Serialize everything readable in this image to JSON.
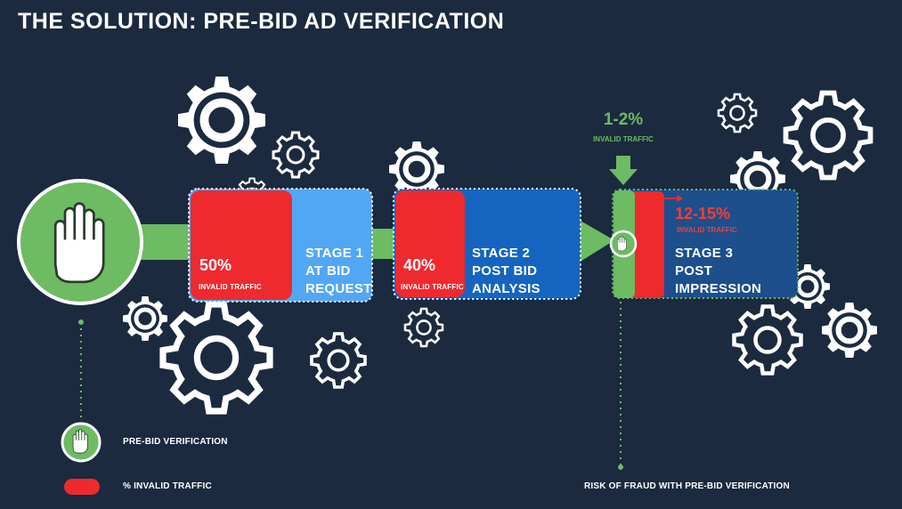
{
  "title": "THE SOLUTION: PRE-BID AD VERIFICATION",
  "stages": [
    {
      "pct": "50%",
      "pct_label": "INVALID TRAFFIC",
      "label_lines": [
        "STAGE 1",
        "AT BID",
        "REQUEST"
      ]
    },
    {
      "pct": "40%",
      "pct_label": "INVALID TRAFFIC",
      "label_lines": [
        "STAGE 2",
        "POST BID",
        "ANALYSIS"
      ]
    },
    {
      "pct": "12-15%",
      "pct_label": "INVALID TRAFFIC",
      "label_lines": [
        "STAGE 3",
        "POST",
        "IMPRESSION"
      ]
    }
  ],
  "prebid": {
    "pct": "1-2%",
    "pct_label": "INVALID TRAFFIC"
  },
  "legend": {
    "verification_label": "PRE-BID VERIFICATION",
    "invalid_label": "% INVALID TRAFFIC"
  },
  "risk_label": "RISK OF FRAUD WITH PRE-BID VERIFICATION",
  "colors": {
    "background": "#1b2a3e",
    "green": "#6dbb63",
    "red": "#ee2a2e",
    "stage1_blue": "#52a7f5",
    "stage2_blue": "#1565c0",
    "stage3_blue": "#1c4f8c"
  },
  "icons": [
    "hand-stop-icon",
    "gear-icon",
    "down-arrow-icon"
  ]
}
